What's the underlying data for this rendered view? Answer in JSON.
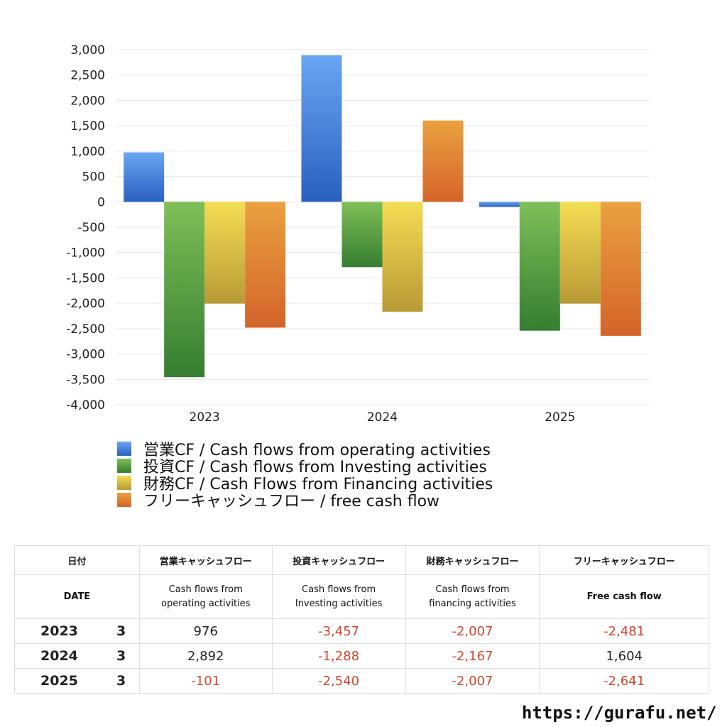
{
  "chart_data": {
    "type": "bar",
    "categories": [
      "2023",
      "2024",
      "2025"
    ],
    "series": [
      {
        "name": "営業CF / Cash flows from operating activities",
        "values": [
          976,
          2892,
          -101
        ],
        "color": "#3f7fdc"
      },
      {
        "name": "投資CF / Cash flows from Investing activities",
        "values": [
          -3457,
          -1288,
          -2540
        ],
        "color": "#4e9a3e"
      },
      {
        "name": "財務CF / Cash Flows from Financing activities",
        "values": [
          -2007,
          -2167,
          -2007
        ],
        "color": "#e3c43f"
      },
      {
        "name": "フリーキャッシュフロー / free cash flow",
        "values": [
          -2481,
          1604,
          -2641
        ],
        "color": "#e07a2e"
      }
    ],
    "ylim": [
      -4000,
      3000
    ],
    "yticks": [
      "3,000",
      "2,500",
      "2,000",
      "1,500",
      "1,000",
      "500",
      "0",
      "-500",
      "-1,000",
      "-1,500",
      "-2,000",
      "-2,500",
      "-3,000",
      "-3,500",
      "-4,000"
    ],
    "grid": true,
    "legend": "bottom"
  },
  "table": {
    "headers_jp": [
      "日付",
      "営業キャッシュフロー",
      "投資キャッシュフロー",
      "財務キャッシュフロー",
      "フリーキャッシュフロー"
    ],
    "headers_en": [
      "DATE",
      "Cash flows from operating activities",
      "Cash flows from Investing activities",
      "Cash flows from financing activities",
      "Free cash flow"
    ],
    "rows": [
      {
        "year": "2023",
        "month": "3",
        "values": [
          "976",
          "-3,457",
          "-2,007",
          "-2,481"
        ]
      },
      {
        "year": "2024",
        "month": "3",
        "values": [
          "2,892",
          "-1,288",
          "-2,167",
          "1,604"
        ]
      },
      {
        "year": "2025",
        "month": "3",
        "values": [
          "-101",
          "-2,540",
          "-2,007",
          "-2,641"
        ]
      }
    ]
  },
  "footer": {
    "url": "https://gurafu.net/"
  }
}
